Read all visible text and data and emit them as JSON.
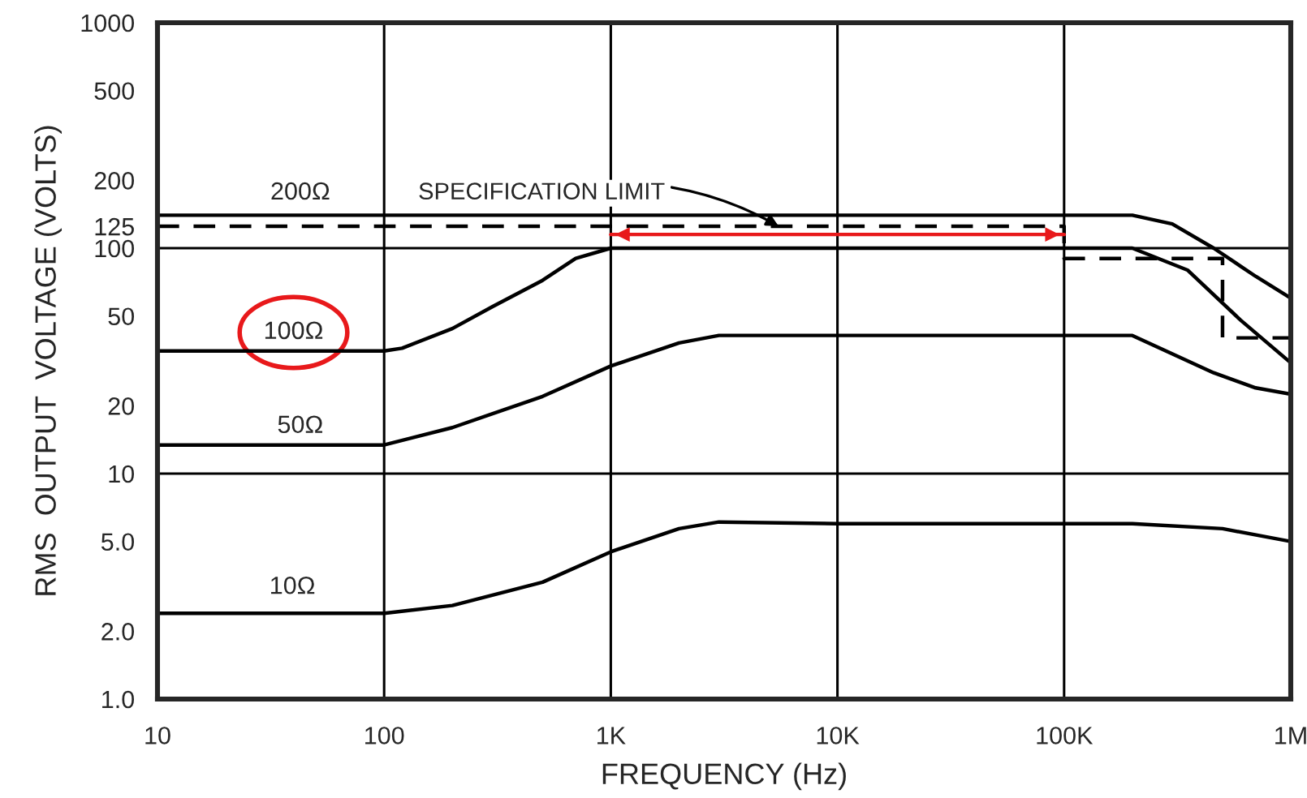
{
  "chart_data": {
    "type": "line",
    "xlabel": "FREQUENCY (Hz)",
    "ylabel": "RMS  OUTPUT  VOLTAGE (VOLTS)",
    "log": "xy",
    "grid": "x",
    "marker": "none",
    "xlim": [
      10,
      1000000
    ],
    "ylim": [
      1,
      1000
    ],
    "xticks": [
      10,
      100,
      {
        "value": 1000,
        "label": "1K"
      },
      {
        "value": 10000,
        "label": "10K"
      },
      {
        "value": 100000,
        "label": "100K"
      },
      {
        "value": 1000000,
        "label": "1M"
      }
    ],
    "yticks": [
      {
        "value": 1,
        "label": "1.0"
      },
      {
        "value": 2,
        "label": "2.0"
      },
      {
        "value": 5,
        "label": "5.0"
      },
      10,
      20,
      50,
      100,
      125,
      200,
      500,
      1000
    ],
    "series": [
      {
        "color": "#000000",
        "line_style": "solid",
        "x": [
          10,
          100,
          1000,
          10000,
          100000,
          200000,
          300000,
          457000,
          700000,
          1000000
        ],
        "values": [
          140,
          140,
          140,
          140,
          140,
          140,
          128,
          100,
          75,
          60
        ]
      },
      {
        "color": "#000000",
        "line_style": "solid",
        "x": [
          10,
          100,
          120,
          200,
          300,
          500,
          700,
          1000,
          10000,
          100000,
          200000,
          350000,
          600000,
          1000000
        ],
        "values": [
          35,
          35,
          36,
          44,
          55,
          72,
          90,
          100,
          100,
          100,
          100,
          80,
          48,
          31
        ]
      },
      {
        "color": "#000000",
        "line_style": "solid",
        "x": [
          10,
          100,
          200,
          500,
          1000,
          2000,
          3000,
          10000,
          100000,
          200000,
          457000,
          700000,
          1000000
        ],
        "values": [
          13.4,
          13.4,
          16,
          22,
          30,
          38,
          41,
          41,
          41,
          41,
          28,
          24,
          22.5
        ]
      },
      {
        "color": "#000000",
        "line_style": "solid",
        "x": [
          10,
          100,
          200,
          500,
          1000,
          2000,
          3000,
          10000,
          100000,
          200000,
          500000,
          1000000
        ],
        "values": [
          2.4,
          2.4,
          2.6,
          3.3,
          4.5,
          5.7,
          6.1,
          6.0,
          6.0,
          6.0,
          5.7,
          5.0
        ]
      },
      {
        "color": "#000000",
        "line_style": "dashed",
        "x": [
          10,
          100000,
          100000,
          500000,
          500000,
          1000000
        ],
        "values": [
          125,
          125,
          90,
          90,
          40,
          40
        ]
      },
      {
        "color": "#e8191b",
        "line_style": "solid",
        "x": [
          1000,
          100000
        ],
        "values": [
          115,
          115
        ]
      }
    ],
    "ref_lines": [
      {
        "axis": "y",
        "value": 10,
        "color": "#000000"
      },
      {
        "axis": "y",
        "value": 100,
        "color": "#000000"
      }
    ],
    "annotations": [
      "200Ω",
      {
        "text": "SPECIFICATION LIMIT",
        "x": 5500,
        "y": 125
      },
      "100Ω",
      "50Ω",
      "10Ω"
    ]
  }
}
